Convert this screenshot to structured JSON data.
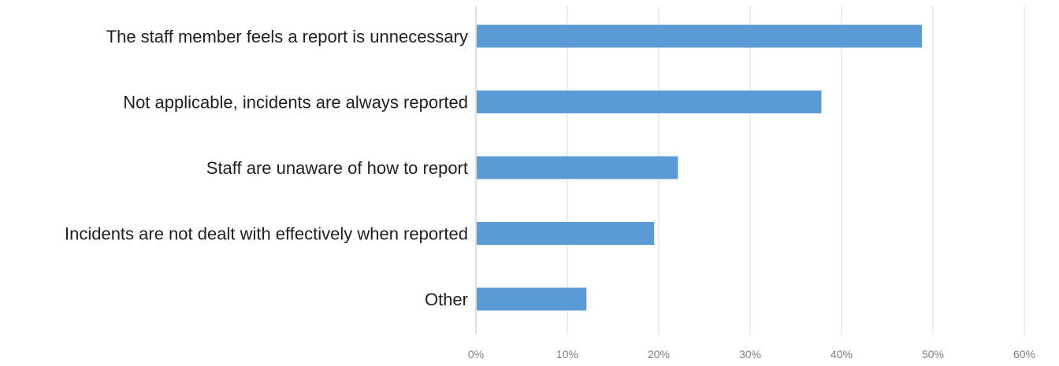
{
  "chart_data": {
    "type": "bar",
    "orientation": "horizontal",
    "categories": [
      "The staff member feels a report is unnecessary",
      "Not applicable, incidents are always reported",
      "Staff are unaware of how to report",
      "Incidents are not dealt with effectively when reported",
      "Other"
    ],
    "values": [
      48.8,
      37.8,
      22.1,
      19.5,
      12.1
    ],
    "unit": "%",
    "xlim": [
      0,
      60
    ],
    "ticks": [
      0,
      10,
      20,
      30,
      40,
      50,
      60
    ],
    "tick_labels": [
      "0%",
      "10%",
      "20%",
      "30%",
      "40%",
      "50%",
      "60%"
    ],
    "title": "",
    "xlabel": "",
    "ylabel": "",
    "grid": "vertical",
    "legend": "none",
    "bar_color": "#5b9bd5",
    "grid_color": "#d9d9d9",
    "tick_label_color": "#7f7f7f",
    "label_color": "#1f1f1f"
  }
}
